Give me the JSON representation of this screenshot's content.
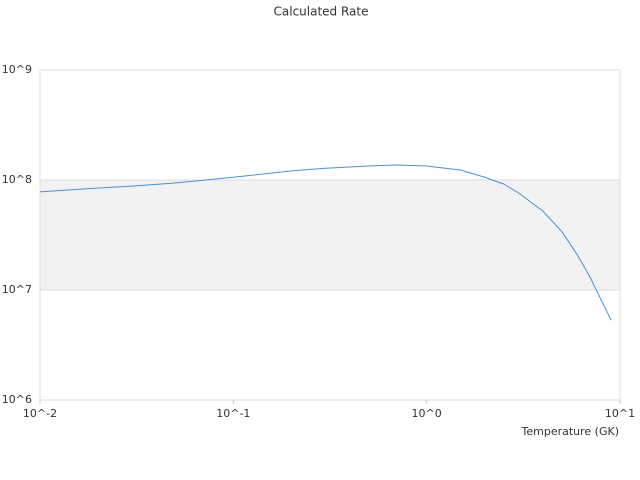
{
  "chart_data": {
    "type": "line",
    "title": "Calculated Rate",
    "x_label": "Temperature (GK)",
    "log_x": true,
    "log_y": true,
    "grid": true,
    "bands": true,
    "xlim": [
      0.01,
      10
    ],
    "ylim": [
      1000000,
      1000000000
    ],
    "xticks": [
      {
        "value": 0.01,
        "label": "10^-2"
      },
      {
        "value": 0.1,
        "label": "10^-1"
      },
      {
        "value": 1,
        "label": "10^0"
      },
      {
        "value": 10,
        "label": "10^1"
      }
    ],
    "yticks": [
      {
        "value": 1000000,
        "label": "10^6"
      },
      {
        "value": 10000000,
        "label": "10^7"
      },
      {
        "value": 100000000,
        "label": "10^8"
      },
      {
        "value": 1000000000,
        "label": "10^9"
      }
    ],
    "x": [
      0.01,
      0.02,
      0.03,
      0.05,
      0.1,
      0.2,
      0.3,
      0.5,
      0.7,
      1,
      1.5,
      2,
      2.5,
      3,
      4,
      5,
      6,
      7,
      9
    ],
    "series": [
      {
        "color": "#4a90d9",
        "values": [
          78000000,
          84500000,
          88000000,
          94000000,
          106000000,
          121000000,
          128000000,
          134000000,
          137000000,
          134000000,
          123000000,
          106000000,
          92000000,
          76000000,
          52000000,
          34000000,
          21000000,
          13100000,
          5300000
        ]
      }
    ]
  }
}
